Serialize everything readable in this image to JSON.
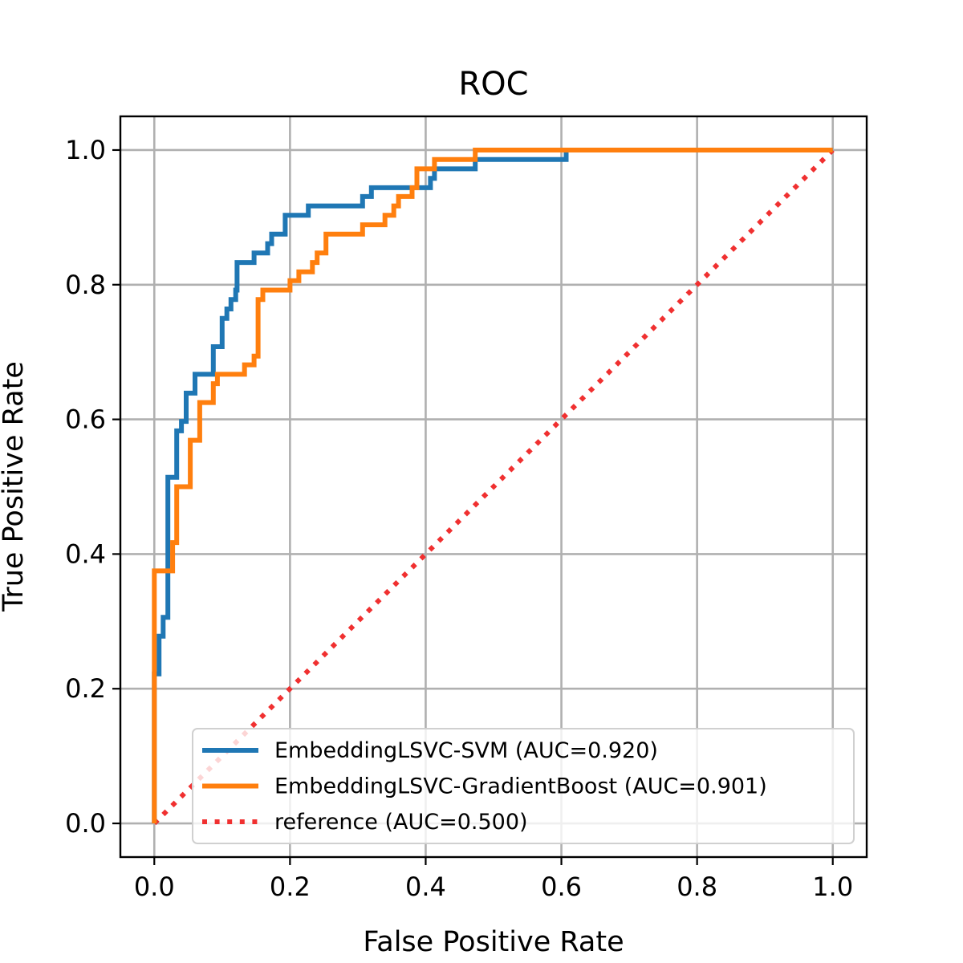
{
  "chart_data": {
    "type": "line",
    "title": "ROC",
    "xlabel": "False Positive Rate",
    "ylabel": "True Positive Rate",
    "xlim": [
      -0.05,
      1.05
    ],
    "ylim": [
      -0.05,
      1.05
    ],
    "xticks": [
      "0.0",
      "0.2",
      "0.4",
      "0.6",
      "0.8",
      "1.0"
    ],
    "yticks": [
      "0.0",
      "0.2",
      "0.4",
      "0.6",
      "0.8",
      "1.0"
    ],
    "grid": true,
    "legend_position": "lower-right",
    "series": [
      {
        "name": "EmbeddingLSVC-SVM (AUC=0.920)",
        "color": "#1f77b4",
        "style": "solid",
        "points": [
          [
            0.0,
            0.0
          ],
          [
            0.0,
            0.222
          ],
          [
            0.007,
            0.222
          ],
          [
            0.007,
            0.278
          ],
          [
            0.013,
            0.278
          ],
          [
            0.013,
            0.306
          ],
          [
            0.02,
            0.306
          ],
          [
            0.02,
            0.514
          ],
          [
            0.033,
            0.514
          ],
          [
            0.033,
            0.583
          ],
          [
            0.04,
            0.583
          ],
          [
            0.04,
            0.597
          ],
          [
            0.047,
            0.597
          ],
          [
            0.047,
            0.639
          ],
          [
            0.06,
            0.639
          ],
          [
            0.06,
            0.667
          ],
          [
            0.087,
            0.667
          ],
          [
            0.087,
            0.708
          ],
          [
            0.1,
            0.708
          ],
          [
            0.1,
            0.75
          ],
          [
            0.107,
            0.75
          ],
          [
            0.107,
            0.764
          ],
          [
            0.113,
            0.764
          ],
          [
            0.113,
            0.778
          ],
          [
            0.12,
            0.778
          ],
          [
            0.12,
            0.792
          ],
          [
            0.122,
            0.792
          ],
          [
            0.122,
            0.833
          ],
          [
            0.147,
            0.833
          ],
          [
            0.147,
            0.847
          ],
          [
            0.167,
            0.847
          ],
          [
            0.167,
            0.861
          ],
          [
            0.173,
            0.861
          ],
          [
            0.173,
            0.875
          ],
          [
            0.193,
            0.875
          ],
          [
            0.193,
            0.903
          ],
          [
            0.227,
            0.903
          ],
          [
            0.227,
            0.917
          ],
          [
            0.307,
            0.917
          ],
          [
            0.307,
            0.931
          ],
          [
            0.32,
            0.931
          ],
          [
            0.32,
            0.944
          ],
          [
            0.407,
            0.944
          ],
          [
            0.407,
            0.958
          ],
          [
            0.413,
            0.958
          ],
          [
            0.413,
            0.972
          ],
          [
            0.473,
            0.972
          ],
          [
            0.473,
            0.986
          ],
          [
            0.607,
            0.986
          ],
          [
            0.607,
            1.0
          ],
          [
            1.0,
            1.0
          ]
        ]
      },
      {
        "name": "EmbeddingLSVC-GradientBoost (AUC=0.901)",
        "color": "#ff7f0e",
        "style": "solid",
        "points": [
          [
            0.0,
            0.0
          ],
          [
            0.0,
            0.375
          ],
          [
            0.027,
            0.375
          ],
          [
            0.027,
            0.417
          ],
          [
            0.033,
            0.417
          ],
          [
            0.033,
            0.5
          ],
          [
            0.053,
            0.5
          ],
          [
            0.053,
            0.569
          ],
          [
            0.067,
            0.569
          ],
          [
            0.067,
            0.625
          ],
          [
            0.087,
            0.625
          ],
          [
            0.087,
            0.653
          ],
          [
            0.093,
            0.653
          ],
          [
            0.093,
            0.667
          ],
          [
            0.133,
            0.667
          ],
          [
            0.133,
            0.681
          ],
          [
            0.147,
            0.681
          ],
          [
            0.147,
            0.694
          ],
          [
            0.153,
            0.694
          ],
          [
            0.153,
            0.778
          ],
          [
            0.16,
            0.778
          ],
          [
            0.16,
            0.792
          ],
          [
            0.2,
            0.792
          ],
          [
            0.2,
            0.806
          ],
          [
            0.213,
            0.806
          ],
          [
            0.213,
            0.819
          ],
          [
            0.233,
            0.819
          ],
          [
            0.233,
            0.833
          ],
          [
            0.24,
            0.833
          ],
          [
            0.24,
            0.847
          ],
          [
            0.253,
            0.847
          ],
          [
            0.253,
            0.875
          ],
          [
            0.307,
            0.875
          ],
          [
            0.307,
            0.889
          ],
          [
            0.34,
            0.889
          ],
          [
            0.34,
            0.903
          ],
          [
            0.353,
            0.903
          ],
          [
            0.353,
            0.917
          ],
          [
            0.36,
            0.917
          ],
          [
            0.36,
            0.931
          ],
          [
            0.38,
            0.931
          ],
          [
            0.38,
            0.944
          ],
          [
            0.387,
            0.944
          ],
          [
            0.387,
            0.972
          ],
          [
            0.413,
            0.972
          ],
          [
            0.413,
            0.986
          ],
          [
            0.473,
            0.986
          ],
          [
            0.473,
            1.0
          ],
          [
            1.0,
            1.0
          ]
        ]
      },
      {
        "name": "reference (AUC=0.500)",
        "color": "#f03030",
        "style": "dotted",
        "points": [
          [
            0.0,
            0.0
          ],
          [
            1.0,
            1.0
          ]
        ]
      }
    ]
  }
}
